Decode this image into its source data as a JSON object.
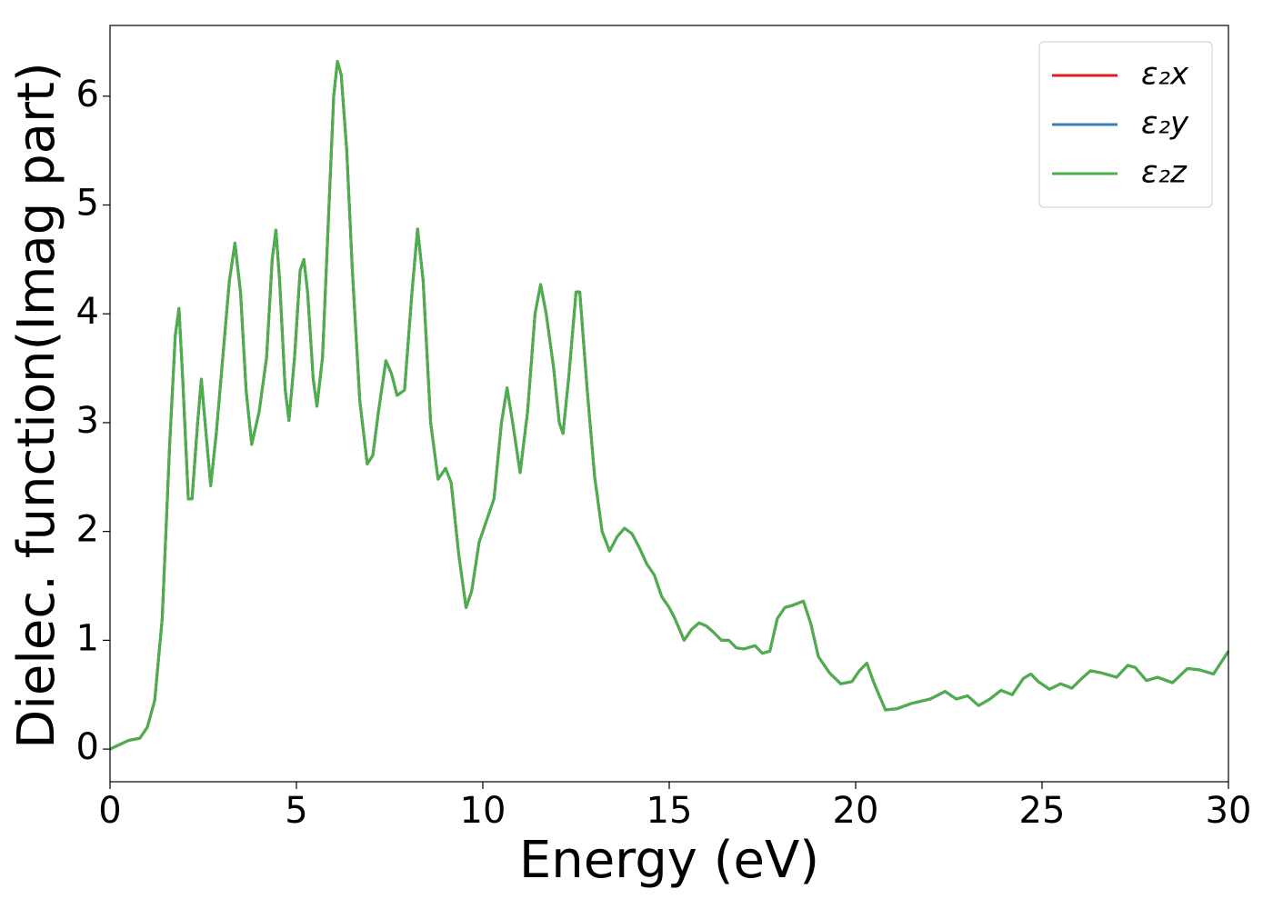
{
  "chart_data": {
    "type": "line",
    "xlabel": "Energy (eV)",
    "ylabel": "Dielec. function(Imag part)",
    "xlim": [
      0,
      30
    ],
    "xticks": [
      0,
      5,
      10,
      15,
      20,
      25,
      30
    ],
    "ylim": [
      -0.3,
      6.65
    ],
    "yticks": [
      0,
      1,
      2,
      3,
      4,
      5,
      6
    ],
    "legend": "upper right",
    "x": [
      0,
      0.5,
      0.8,
      1.0,
      1.2,
      1.4,
      1.6,
      1.75,
      1.85,
      1.95,
      2.1,
      2.2,
      2.35,
      2.45,
      2.55,
      2.7,
      2.85,
      3.0,
      3.2,
      3.35,
      3.5,
      3.65,
      3.8,
      4.0,
      4.2,
      4.35,
      4.45,
      4.55,
      4.7,
      4.8,
      4.95,
      5.1,
      5.2,
      5.3,
      5.45,
      5.55,
      5.7,
      5.85,
      6.0,
      6.1,
      6.2,
      6.35,
      6.5,
      6.7,
      6.9,
      7.05,
      7.2,
      7.4,
      7.55,
      7.7,
      7.9,
      8.1,
      8.25,
      8.4,
      8.6,
      8.8,
      9.0,
      9.15,
      9.35,
      9.55,
      9.7,
      9.9,
      10.1,
      10.3,
      10.5,
      10.65,
      10.8,
      11.0,
      11.2,
      11.4,
      11.55,
      11.7,
      11.9,
      12.05,
      12.15,
      12.3,
      12.5,
      12.6,
      12.8,
      13.0,
      13.2,
      13.4,
      13.6,
      13.8,
      14.0,
      14.2,
      14.4,
      14.6,
      14.8,
      15.0,
      15.15,
      15.4,
      15.6,
      15.8,
      16.0,
      16.2,
      16.4,
      16.6,
      16.8,
      17.0,
      17.3,
      17.5,
      17.7,
      17.9,
      18.1,
      18.3,
      18.6,
      18.8,
      19.0,
      19.3,
      19.6,
      19.9,
      20.1,
      20.3,
      20.5,
      20.8,
      21.1,
      21.5,
      22.0,
      22.4,
      22.7,
      23.0,
      23.3,
      23.6,
      23.9,
      24.2,
      24.5,
      24.7,
      24.9,
      25.2,
      25.5,
      25.8,
      26.1,
      26.3,
      26.6,
      27.0,
      27.3,
      27.5,
      27.8,
      28.1,
      28.5,
      28.9,
      29.2,
      29.6,
      30.0
    ],
    "series": [
      {
        "name": "ε₂x",
        "color": "#e41a1c",
        "values": [
          0,
          0.08,
          0.1,
          0.2,
          0.45,
          1.2,
          2.8,
          3.8,
          4.05,
          3.4,
          2.3,
          2.3,
          3.0,
          3.4,
          3.0,
          2.42,
          2.9,
          3.5,
          4.3,
          4.65,
          4.2,
          3.3,
          2.8,
          3.1,
          3.6,
          4.5,
          4.77,
          4.3,
          3.3,
          3.02,
          3.6,
          4.4,
          4.5,
          4.2,
          3.4,
          3.15,
          3.6,
          4.8,
          6.0,
          6.32,
          6.2,
          5.5,
          4.4,
          3.2,
          2.62,
          2.7,
          3.1,
          3.57,
          3.45,
          3.25,
          3.3,
          4.2,
          4.78,
          4.3,
          3.0,
          2.48,
          2.58,
          2.45,
          1.8,
          1.3,
          1.45,
          1.9,
          2.1,
          2.3,
          3.0,
          3.32,
          3.0,
          2.54,
          3.1,
          4.0,
          4.27,
          4.0,
          3.5,
          3.0,
          2.9,
          3.4,
          4.2,
          4.2,
          3.3,
          2.5,
          2.0,
          1.82,
          1.95,
          2.03,
          1.98,
          1.85,
          1.7,
          1.6,
          1.4,
          1.3,
          1.2,
          1.0,
          1.1,
          1.16,
          1.13,
          1.07,
          1.0,
          1.0,
          0.93,
          0.92,
          0.95,
          0.88,
          0.9,
          1.2,
          1.3,
          1.32,
          1.36,
          1.15,
          0.85,
          0.7,
          0.6,
          0.62,
          0.72,
          0.79,
          0.6,
          0.36,
          0.37,
          0.42,
          0.46,
          0.53,
          0.46,
          0.49,
          0.4,
          0.46,
          0.54,
          0.5,
          0.65,
          0.69,
          0.62,
          0.55,
          0.6,
          0.56,
          0.66,
          0.72,
          0.7,
          0.66,
          0.77,
          0.75,
          0.63,
          0.66,
          0.61,
          0.74,
          0.73,
          0.69,
          0.9
        ]
      },
      {
        "name": "ε₂y",
        "color": "#377eb8",
        "values": [
          0,
          0.08,
          0.1,
          0.2,
          0.45,
          1.2,
          2.8,
          3.8,
          4.05,
          3.4,
          2.3,
          2.3,
          3.0,
          3.4,
          3.0,
          2.42,
          2.9,
          3.5,
          4.3,
          4.65,
          4.2,
          3.3,
          2.8,
          3.1,
          3.6,
          4.5,
          4.77,
          4.3,
          3.3,
          3.02,
          3.6,
          4.4,
          4.5,
          4.2,
          3.4,
          3.15,
          3.6,
          4.8,
          6.0,
          6.32,
          6.2,
          5.5,
          4.4,
          3.2,
          2.62,
          2.7,
          3.1,
          3.57,
          3.45,
          3.25,
          3.3,
          4.2,
          4.78,
          4.3,
          3.0,
          2.48,
          2.58,
          2.45,
          1.8,
          1.3,
          1.45,
          1.9,
          2.1,
          2.3,
          3.0,
          3.32,
          3.0,
          2.54,
          3.1,
          4.0,
          4.27,
          4.0,
          3.5,
          3.0,
          2.9,
          3.4,
          4.2,
          4.2,
          3.3,
          2.5,
          2.0,
          1.82,
          1.95,
          2.03,
          1.98,
          1.85,
          1.7,
          1.6,
          1.4,
          1.3,
          1.2,
          1.0,
          1.1,
          1.16,
          1.13,
          1.07,
          1.0,
          1.0,
          0.93,
          0.92,
          0.95,
          0.88,
          0.9,
          1.2,
          1.3,
          1.32,
          1.36,
          1.15,
          0.85,
          0.7,
          0.6,
          0.62,
          0.72,
          0.79,
          0.6,
          0.36,
          0.37,
          0.42,
          0.46,
          0.53,
          0.46,
          0.49,
          0.4,
          0.46,
          0.54,
          0.5,
          0.65,
          0.69,
          0.62,
          0.55,
          0.6,
          0.56,
          0.66,
          0.72,
          0.7,
          0.66,
          0.77,
          0.75,
          0.63,
          0.66,
          0.61,
          0.74,
          0.73,
          0.69,
          0.9
        ]
      },
      {
        "name": "ε₂z",
        "color": "#4daf4a",
        "values": [
          0,
          0.08,
          0.1,
          0.2,
          0.45,
          1.2,
          2.8,
          3.8,
          4.05,
          3.4,
          2.3,
          2.3,
          3.0,
          3.4,
          3.0,
          2.42,
          2.9,
          3.5,
          4.3,
          4.65,
          4.2,
          3.3,
          2.8,
          3.1,
          3.6,
          4.5,
          4.77,
          4.3,
          3.3,
          3.02,
          3.6,
          4.4,
          4.5,
          4.2,
          3.4,
          3.15,
          3.6,
          4.8,
          6.0,
          6.32,
          6.2,
          5.5,
          4.4,
          3.2,
          2.62,
          2.7,
          3.1,
          3.57,
          3.45,
          3.25,
          3.3,
          4.2,
          4.78,
          4.3,
          3.0,
          2.48,
          2.58,
          2.45,
          1.8,
          1.3,
          1.45,
          1.9,
          2.1,
          2.3,
          3.0,
          3.32,
          3.0,
          2.54,
          3.1,
          4.0,
          4.27,
          4.0,
          3.5,
          3.0,
          2.9,
          3.4,
          4.2,
          4.2,
          3.3,
          2.5,
          2.0,
          1.82,
          1.95,
          2.03,
          1.98,
          1.85,
          1.7,
          1.6,
          1.4,
          1.3,
          1.2,
          1.0,
          1.1,
          1.16,
          1.13,
          1.07,
          1.0,
          1.0,
          0.93,
          0.92,
          0.95,
          0.88,
          0.9,
          1.2,
          1.3,
          1.32,
          1.36,
          1.15,
          0.85,
          0.7,
          0.6,
          0.62,
          0.72,
          0.79,
          0.6,
          0.36,
          0.37,
          0.42,
          0.46,
          0.53,
          0.46,
          0.49,
          0.4,
          0.46,
          0.54,
          0.5,
          0.65,
          0.69,
          0.62,
          0.55,
          0.6,
          0.56,
          0.66,
          0.72,
          0.7,
          0.66,
          0.77,
          0.75,
          0.63,
          0.66,
          0.61,
          0.74,
          0.73,
          0.69,
          0.9
        ]
      }
    ]
  }
}
